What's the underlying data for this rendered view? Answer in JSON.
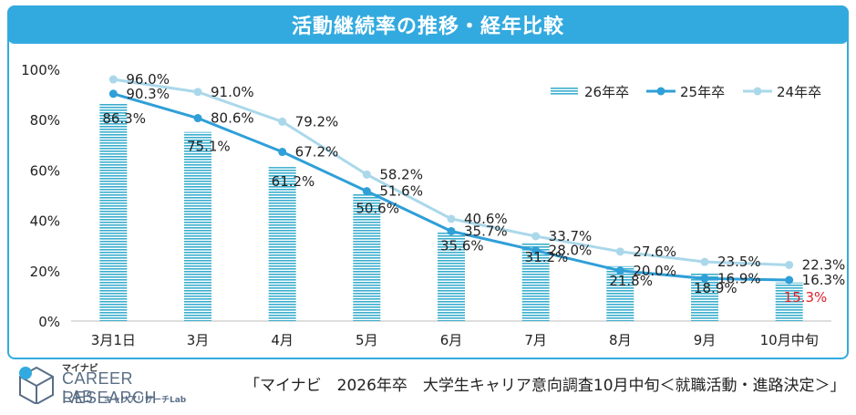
{
  "title": "活動継続率の推移・経年比較",
  "source_note": "「マイナビ　2026年卒　大学生キャリア意向調査10月中旬＜就職活動・進路決定＞」",
  "logo": {
    "brand": "マイナビ",
    "line1": "CAREER RESEARCH",
    "line2a": "LAB",
    "line2b": "キャリアリサーチLab"
  },
  "colors": {
    "accent": "#33aadf",
    "bar": "#3aaecd",
    "line_25": "#2f9fd8",
    "line_24": "#aad8ea",
    "highlight": "#e0202a"
  },
  "chart_data": {
    "type": "bar",
    "categories": [
      "3月1日",
      "3月",
      "4月",
      "5月",
      "6月",
      "7月",
      "8月",
      "9月",
      "10月中旬"
    ],
    "ylim": [
      0,
      100
    ],
    "yticks": [
      0,
      20,
      40,
      60,
      80,
      100
    ],
    "ytick_labels": [
      "0%",
      "20%",
      "40%",
      "60%",
      "80%",
      "100%"
    ],
    "series": [
      {
        "name": "26年卒",
        "kind": "bar",
        "values": [
          86.3,
          75.1,
          61.2,
          50.6,
          35.6,
          31.2,
          21.8,
          18.9,
          15.3
        ],
        "labels": [
          "86.3%",
          "75.1%",
          "61.2%",
          "50.6%",
          "35.6%",
          "31.2%",
          "21.8%",
          "18.9%",
          "15.3%"
        ]
      },
      {
        "name": "25年卒",
        "kind": "line",
        "values": [
          90.3,
          80.6,
          67.2,
          51.6,
          35.7,
          28.0,
          20.0,
          16.9,
          16.3
        ],
        "labels": [
          "90.3%",
          "80.6%",
          "67.2%",
          "51.6%",
          "35.7%",
          "28.0%",
          "20.0%",
          "16.9%",
          "16.3%"
        ]
      },
      {
        "name": "24年卒",
        "kind": "line",
        "values": [
          96.0,
          91.0,
          79.2,
          58.2,
          40.6,
          33.7,
          27.6,
          23.5,
          22.3
        ],
        "labels": [
          "96.0%",
          "91.0%",
          "79.2%",
          "58.2%",
          "40.6%",
          "33.7%",
          "27.6%",
          "23.5%",
          "22.3%"
        ]
      }
    ],
    "legend_position": "top-right"
  }
}
